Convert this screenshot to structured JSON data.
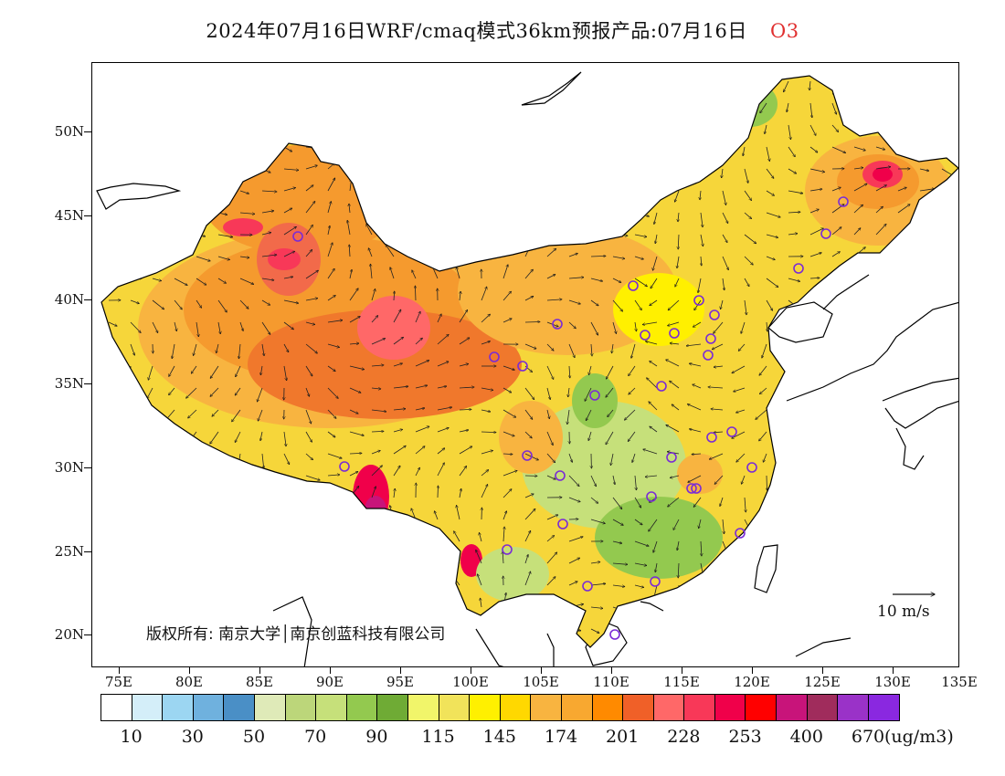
{
  "title": {
    "main": "2024年07月16日WRF/cmaq模式36km预报产品:07月16日",
    "species": "O3",
    "species_color": "#e03030"
  },
  "map": {
    "lon_labels": [
      "75E",
      "80E",
      "85E",
      "90E",
      "95E",
      "100E",
      "105E",
      "110E",
      "115E",
      "120E",
      "125E",
      "130E",
      "135E"
    ],
    "lat_labels": [
      "50N",
      "45N",
      "40N",
      "35N",
      "30N",
      "25N",
      "20N"
    ],
    "copyright": "版权所有: 南京大学│南京创蓝科技有限公司",
    "vector_scale_label": "10 m/s",
    "marker_color": "#7a2bd6",
    "city_markers_visible": true,
    "wind_vectors_visible": true
  },
  "colorbar": {
    "colors": [
      "#ffffff",
      "#d4eef9",
      "#9cd6f2",
      "#6fb1de",
      "#4a8fc6",
      "#dfeab8",
      "#bcd67a",
      "#c6e07a",
      "#93c94f",
      "#6fab35",
      "#f1f56a",
      "#f1e35a",
      "#fff000",
      "#ffd800",
      "#f8b440",
      "#f8a830",
      "#ff8a00",
      "#f06028",
      "#ff6868",
      "#f83858",
      "#f0004a",
      "#ff0000",
      "#c8147a",
      "#a02c5c",
      "#9a32c8",
      "#8a28e0"
    ],
    "labels": [
      "10",
      "30",
      "50",
      "70",
      "90",
      "115",
      "145",
      "174",
      "201",
      "228",
      "253",
      "400",
      "670"
    ],
    "unit": "(ug/m3)"
  }
}
